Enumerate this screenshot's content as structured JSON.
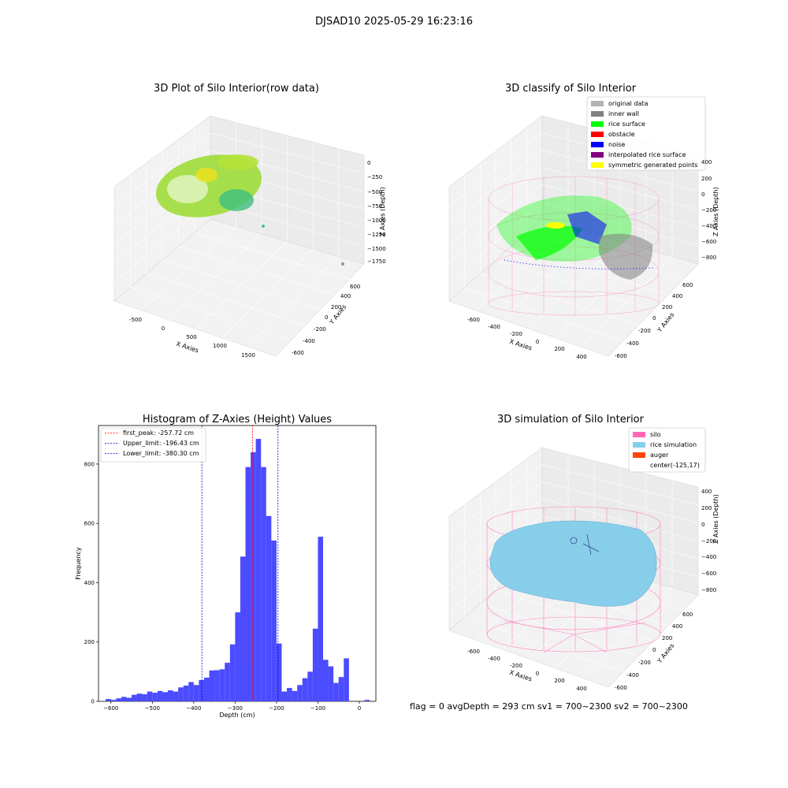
{
  "figure": {
    "suptitle": "DJSAD10 2025-05-29 16:23:16",
    "status_line": "flag = 0     avgDepth = 293 cm  sv1 = 700~2300  sv2 = 700~2300"
  },
  "colors": {
    "hist_bar": "#4b4bff",
    "first_peak": "#ff0000",
    "limits": "#0000cc",
    "silo": "#ff69b4",
    "rice_simulation": "#87ceeb",
    "auger": "#ff4500",
    "original_data": "#b3b3b3",
    "inner_wall": "#808080",
    "rice_surface": "#00ff00",
    "obstacle": "#ff0000",
    "noise": "#0000ff",
    "interpolated_rice_surface": "#800080",
    "symmetric_generated_points": "#ffff00"
  },
  "panels": {
    "raw": {
      "title": "3D Plot of Silo Interior(row data)",
      "xlabel": "X Axies",
      "ylabel": "Y Axies",
      "zlabel": "Z Axies (Depth)",
      "xticks": [
        "-500",
        "0",
        "500",
        "1000",
        "1500"
      ],
      "yticks": [
        "-600",
        "-400",
        "-200",
        "0",
        "200",
        "400",
        "600"
      ],
      "zticks": [
        "0",
        "−250",
        "−500",
        "−750",
        "−1000",
        "−1250",
        "−1500",
        "−1750"
      ]
    },
    "classify": {
      "title": "3D classify of Silo Interior",
      "xlabel": "X Axies",
      "ylabel": "Y Axies",
      "zlabel": "Z Axies (Depth)",
      "xticks": [
        "-600",
        "-400",
        "-200",
        "0",
        "200",
        "400"
      ],
      "yticks": [
        "-600",
        "-400",
        "-200",
        "0",
        "200",
        "400",
        "600"
      ],
      "zticks": [
        "400",
        "200",
        "0",
        "−200",
        "−400",
        "−600",
        "−800"
      ],
      "legend": [
        {
          "label": "original data",
          "color": "#b3b3b3"
        },
        {
          "label": "inner wall",
          "color": "#808080"
        },
        {
          "label": "rice surface",
          "color": "#00ff00"
        },
        {
          "label": "obstacle",
          "color": "#ff0000"
        },
        {
          "label": "noise",
          "color": "#0000ff"
        },
        {
          "label": "interpolated rice surface",
          "color": "#800080"
        },
        {
          "label": "symmetric generated points",
          "color": "#ffff00"
        }
      ]
    },
    "simulation": {
      "title": "3D simulation of Silo Interior",
      "xlabel": "X Axies",
      "ylabel": "Y Axies",
      "zlabel": "Z Axies (Depth)",
      "xticks": [
        "-600",
        "-400",
        "-200",
        "0",
        "200",
        "400"
      ],
      "yticks": [
        "-600",
        "-400",
        "-200",
        "0",
        "200",
        "400",
        "600"
      ],
      "zticks": [
        "400",
        "200",
        "0",
        "−200",
        "−400",
        "−600",
        "−800"
      ],
      "legend": [
        {
          "label": "silo",
          "color": "#ff69b4"
        },
        {
          "label": "rice simulation",
          "color": "#87ceeb"
        },
        {
          "label": "auger",
          "color": "#ff4500"
        },
        {
          "label": "center(-125,17)",
          "color": ""
        }
      ]
    }
  },
  "chart_data": {
    "type": "bar",
    "title": "Histogram of Z-Axies (Height) Values",
    "xlabel": "Depth (cm)",
    "ylabel": "Frequency",
    "xlim": [
      -630,
      40
    ],
    "ylim": [
      0,
      930
    ],
    "xticks": [
      -600,
      -500,
      -400,
      -300,
      -200,
      -100,
      0
    ],
    "xtick_labels": [
      "−600",
      "−500",
      "−400",
      "−300",
      "−200",
      "−100",
      "0"
    ],
    "yticks": [
      0,
      200,
      400,
      600,
      800
    ],
    "yticks_labels": [
      "0",
      "200",
      "400",
      "600",
      "800"
    ],
    "bin_width": 12.5,
    "bin_start": -612.5,
    "values": [
      8,
      5,
      10,
      15,
      12,
      22,
      26,
      24,
      33,
      29,
      35,
      31,
      37,
      33,
      47,
      53,
      65,
      55,
      72,
      80,
      104,
      105,
      108,
      130,
      192,
      300,
      488,
      790,
      840,
      885,
      790,
      625,
      542,
      195,
      33,
      45,
      35,
      55,
      78,
      100,
      245,
      555,
      140,
      118,
      62,
      82,
      145,
      0,
      0,
      0,
      5
    ],
    "legend_placement": "top-left",
    "lines": [
      {
        "label": "first_peak: -257.72 cm",
        "x": -257.72,
        "color": "#ff0000"
      },
      {
        "label": "Upper_limit: -196.43 cm",
        "x": -196.43,
        "color": "#0000cc"
      },
      {
        "label": "Lower_limit: -380.30 cm",
        "x": -380.3,
        "color": "#0000cc"
      }
    ]
  }
}
